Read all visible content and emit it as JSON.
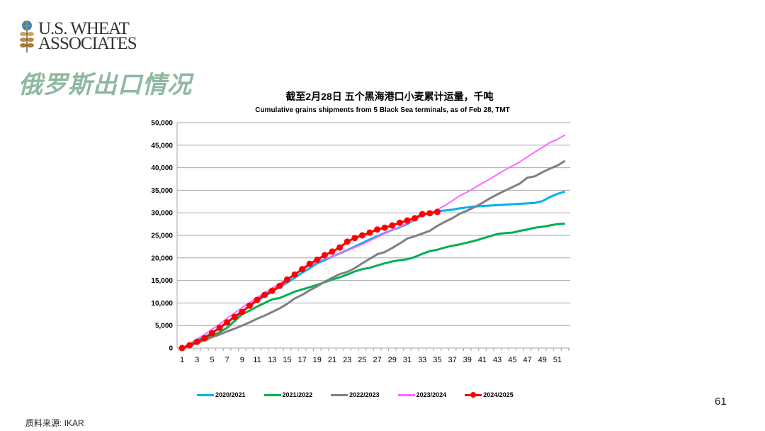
{
  "logo": {
    "text_line1": "U.S. WHEAT",
    "text_line2": "ASSOCIATES"
  },
  "slide_title": "俄罗斯出口情况",
  "page_number": "61",
  "source": "质料来源: IKAR",
  "chart_data": {
    "type": "line",
    "title": "截至2月28日 五个黑海港口小麦累计运量，千吨",
    "subtitle": "Cumulative grains shipments from 5 Black Sea terminals, as of Feb 28, TMT",
    "xlabel": "",
    "ylabel": "",
    "xlim": [
      1,
      52
    ],
    "ylim": [
      0,
      50000
    ],
    "yticks": [
      "0",
      "5,000",
      "10,000",
      "15,000",
      "20,000",
      "25,000",
      "30,000",
      "35,000",
      "40,000",
      "45,000",
      "50,000"
    ],
    "xticks": [
      "1",
      "3",
      "5",
      "7",
      "9",
      "11",
      "13",
      "15",
      "17",
      "19",
      "21",
      "23",
      "25",
      "27",
      "29",
      "31",
      "33",
      "35",
      "37",
      "39",
      "41",
      "43",
      "45",
      "47",
      "49",
      "51"
    ],
    "grid": "horizontal",
    "legend_position": "bottom",
    "series": [
      {
        "name": "2020/2021",
        "color": "#00b0f0",
        "values": [
          0,
          800,
          1600,
          2400,
          3400,
          4500,
          5700,
          7000,
          8200,
          9300,
          10500,
          11500,
          12500,
          13500,
          14500,
          15600,
          16700,
          17700,
          18800,
          19500,
          20300,
          21000,
          21700,
          22500,
          23300,
          24100,
          24800,
          25500,
          26200,
          26800,
          27500,
          28500,
          29500,
          30100,
          30400,
          30500,
          30700,
          31000,
          31200,
          31400,
          31500,
          31600,
          31700,
          31800,
          31900,
          32000,
          32100,
          32200,
          32600,
          33500,
          34200,
          34700
        ]
      },
      {
        "name": "2021/2022",
        "color": "#00b050",
        "values": [
          0,
          600,
          1300,
          2000,
          2700,
          3500,
          4500,
          6000,
          7500,
          8300,
          9200,
          10000,
          10800,
          11100,
          11800,
          12500,
          13000,
          13500,
          14000,
          14600,
          15200,
          15700,
          16300,
          17000,
          17500,
          17800,
          18300,
          18800,
          19200,
          19500,
          19700,
          20200,
          20900,
          21500,
          21800,
          22300,
          22700,
          23000,
          23400,
          23800,
          24300,
          24800,
          25300,
          25500,
          25600,
          26000,
          26300,
          26700,
          26900,
          27200,
          27500,
          27600
        ]
      },
      {
        "name": "2022/2023",
        "color": "#808080",
        "values": [
          0,
          500,
          1100,
          1700,
          2400,
          3000,
          3700,
          4300,
          5000,
          5700,
          6500,
          7200,
          8000,
          8800,
          9800,
          11000,
          11800,
          12800,
          13700,
          14700,
          15600,
          16400,
          16900,
          17700,
          18800,
          19800,
          20800,
          21300,
          22200,
          23200,
          24300,
          24800,
          25400,
          26000,
          27100,
          28000,
          28800,
          29800,
          30500,
          31300,
          32200,
          33200,
          34100,
          34900,
          35700,
          36500,
          37800,
          38100,
          39000,
          39800,
          40500,
          41500
        ]
      },
      {
        "name": "2023/2024",
        "color": "#ff66ff",
        "values": [
          0,
          1000,
          2000,
          3000,
          4200,
          5300,
          6600,
          7800,
          9000,
          10100,
          11200,
          12300,
          13300,
          14300,
          15300,
          16300,
          17300,
          18300,
          19200,
          19800,
          20300,
          21000,
          21600,
          22300,
          23000,
          23800,
          24600,
          25400,
          26200,
          26900,
          27700,
          28500,
          29300,
          30000,
          30700,
          31600,
          32700,
          33800,
          34600,
          35600,
          36600,
          37500,
          38500,
          39500,
          40400,
          41300,
          42400,
          43500,
          44500,
          45600,
          46300,
          47300
        ]
      },
      {
        "name": "2024/2025",
        "color": "#ff0000",
        "markers": true,
        "values": [
          0,
          600,
          1400,
          2200,
          3300,
          4500,
          5700,
          6900,
          8000,
          9400,
          10700,
          11800,
          12700,
          13800,
          15200,
          16300,
          17500,
          18700,
          19600,
          20600,
          21400,
          22300,
          23600,
          24400,
          25000,
          25600,
          26300,
          26700,
          27200,
          27800,
          28300,
          28800,
          29700,
          29900,
          30200
        ]
      }
    ]
  }
}
